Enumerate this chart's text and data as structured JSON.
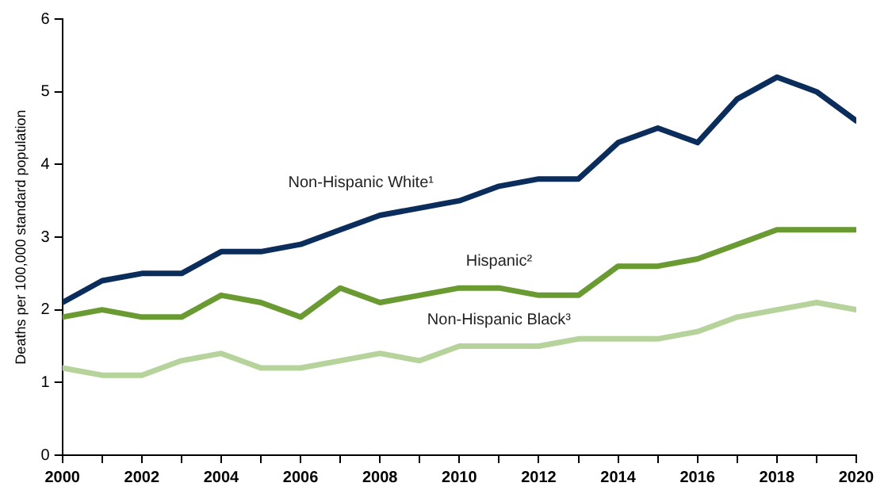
{
  "chart_data": {
    "type": "line",
    "ylabel": "Deaths per 100,000 standard population",
    "x": [
      2000,
      2001,
      2002,
      2003,
      2004,
      2005,
      2006,
      2007,
      2008,
      2009,
      2010,
      2011,
      2012,
      2013,
      2014,
      2015,
      2016,
      2017,
      2018,
      2019,
      2020
    ],
    "series": [
      {
        "name": "Non-Hispanic White¹",
        "color": "#0b2d5c",
        "values": [
          2.1,
          2.4,
          2.5,
          2.5,
          2.8,
          2.8,
          2.9,
          3.1,
          3.3,
          3.4,
          3.5,
          3.7,
          3.8,
          3.8,
          4.3,
          4.5,
          4.3,
          4.9,
          5.2,
          5.0,
          4.6
        ]
      },
      {
        "name": "Hispanic²",
        "color": "#6a9a32",
        "values": [
          1.9,
          2.0,
          1.9,
          1.9,
          2.2,
          2.1,
          1.9,
          2.3,
          2.1,
          2.2,
          2.3,
          2.3,
          2.2,
          2.2,
          2.6,
          2.6,
          2.7,
          2.9,
          3.1,
          3.1,
          3.1
        ]
      },
      {
        "name": "Non-Hispanic Black³",
        "color": "#b5d39a",
        "values": [
          1.2,
          1.1,
          1.1,
          1.3,
          1.4,
          1.2,
          1.2,
          1.3,
          1.4,
          1.3,
          1.5,
          1.5,
          1.5,
          1.6,
          1.6,
          1.6,
          1.7,
          1.9,
          2.0,
          2.1,
          2.0
        ]
      }
    ],
    "xlim": [
      2000,
      2020
    ],
    "xticks": [
      2000,
      {
        "value": 2001,
        "label": null
      },
      2002,
      {
        "value": 2003,
        "label": null
      },
      2004,
      {
        "value": 2005,
        "label": null
      },
      2006,
      {
        "value": 2007,
        "label": null
      },
      2008,
      {
        "value": 2009,
        "label": null
      },
      2010,
      {
        "value": 2011,
        "label": null
      },
      2012,
      {
        "value": 2013,
        "label": null
      },
      2014,
      {
        "value": 2015,
        "label": null
      },
      2016,
      {
        "value": 2017,
        "label": null
      },
      2018,
      {
        "value": 2019,
        "label": null
      },
      2020
    ],
    "ylim": [
      0,
      6
    ],
    "yticks": [
      0,
      1,
      2,
      3,
      4,
      5,
      6
    ],
    "grid": false,
    "legend": false,
    "marker": "none",
    "line_style": "solid"
  }
}
